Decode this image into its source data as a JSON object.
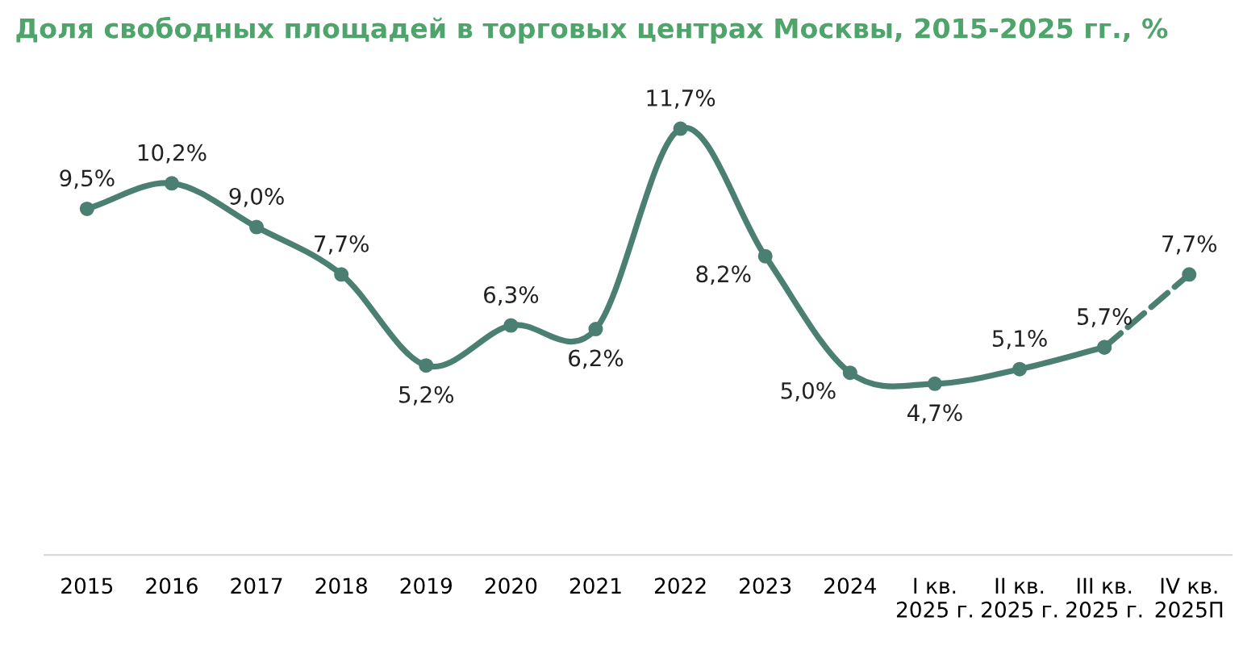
{
  "chart_data": {
    "type": "line",
    "title": "Доля свободных площадей в торговых центрах Москвы, 2015-2025 гг., %",
    "categories": [
      "2015",
      "2016",
      "2017",
      "2018",
      "2019",
      "2020",
      "2021",
      "2022",
      "2023",
      "2024",
      "I кв.\n2025 г.",
      "II кв.\n2025 г.",
      "III кв.\n2025 г.",
      "IV кв.\n2025П"
    ],
    "series": [
      {
        "color": "#4a7f72",
        "line_style": "solid",
        "values": [
          9.5,
          10.2,
          9.0,
          7.7,
          5.2,
          6.3,
          6.2,
          11.7,
          8.2,
          5.0,
          4.7,
          5.1,
          5.7,
          null
        ],
        "value_labels": [
          "9,5%",
          "10,2%",
          "9,0%",
          "7,7%",
          "5,2%",
          "6,3%",
          "6,2%",
          "11,7%",
          "8,2%",
          "5,0%",
          "4,7%",
          "5,1%",
          "5,7%",
          null
        ]
      },
      {
        "color": "#4a7f72",
        "line_style": "dashed",
        "values": [
          null,
          null,
          null,
          null,
          null,
          null,
          null,
          null,
          null,
          null,
          null,
          null,
          5.7,
          7.7
        ],
        "value_labels": [
          null,
          null,
          null,
          null,
          null,
          null,
          null,
          null,
          null,
          null,
          null,
          null,
          null,
          "7,7%"
        ]
      }
    ],
    "marker": "circle",
    "grid": false,
    "legend": false,
    "tick_labels": "x"
  }
}
